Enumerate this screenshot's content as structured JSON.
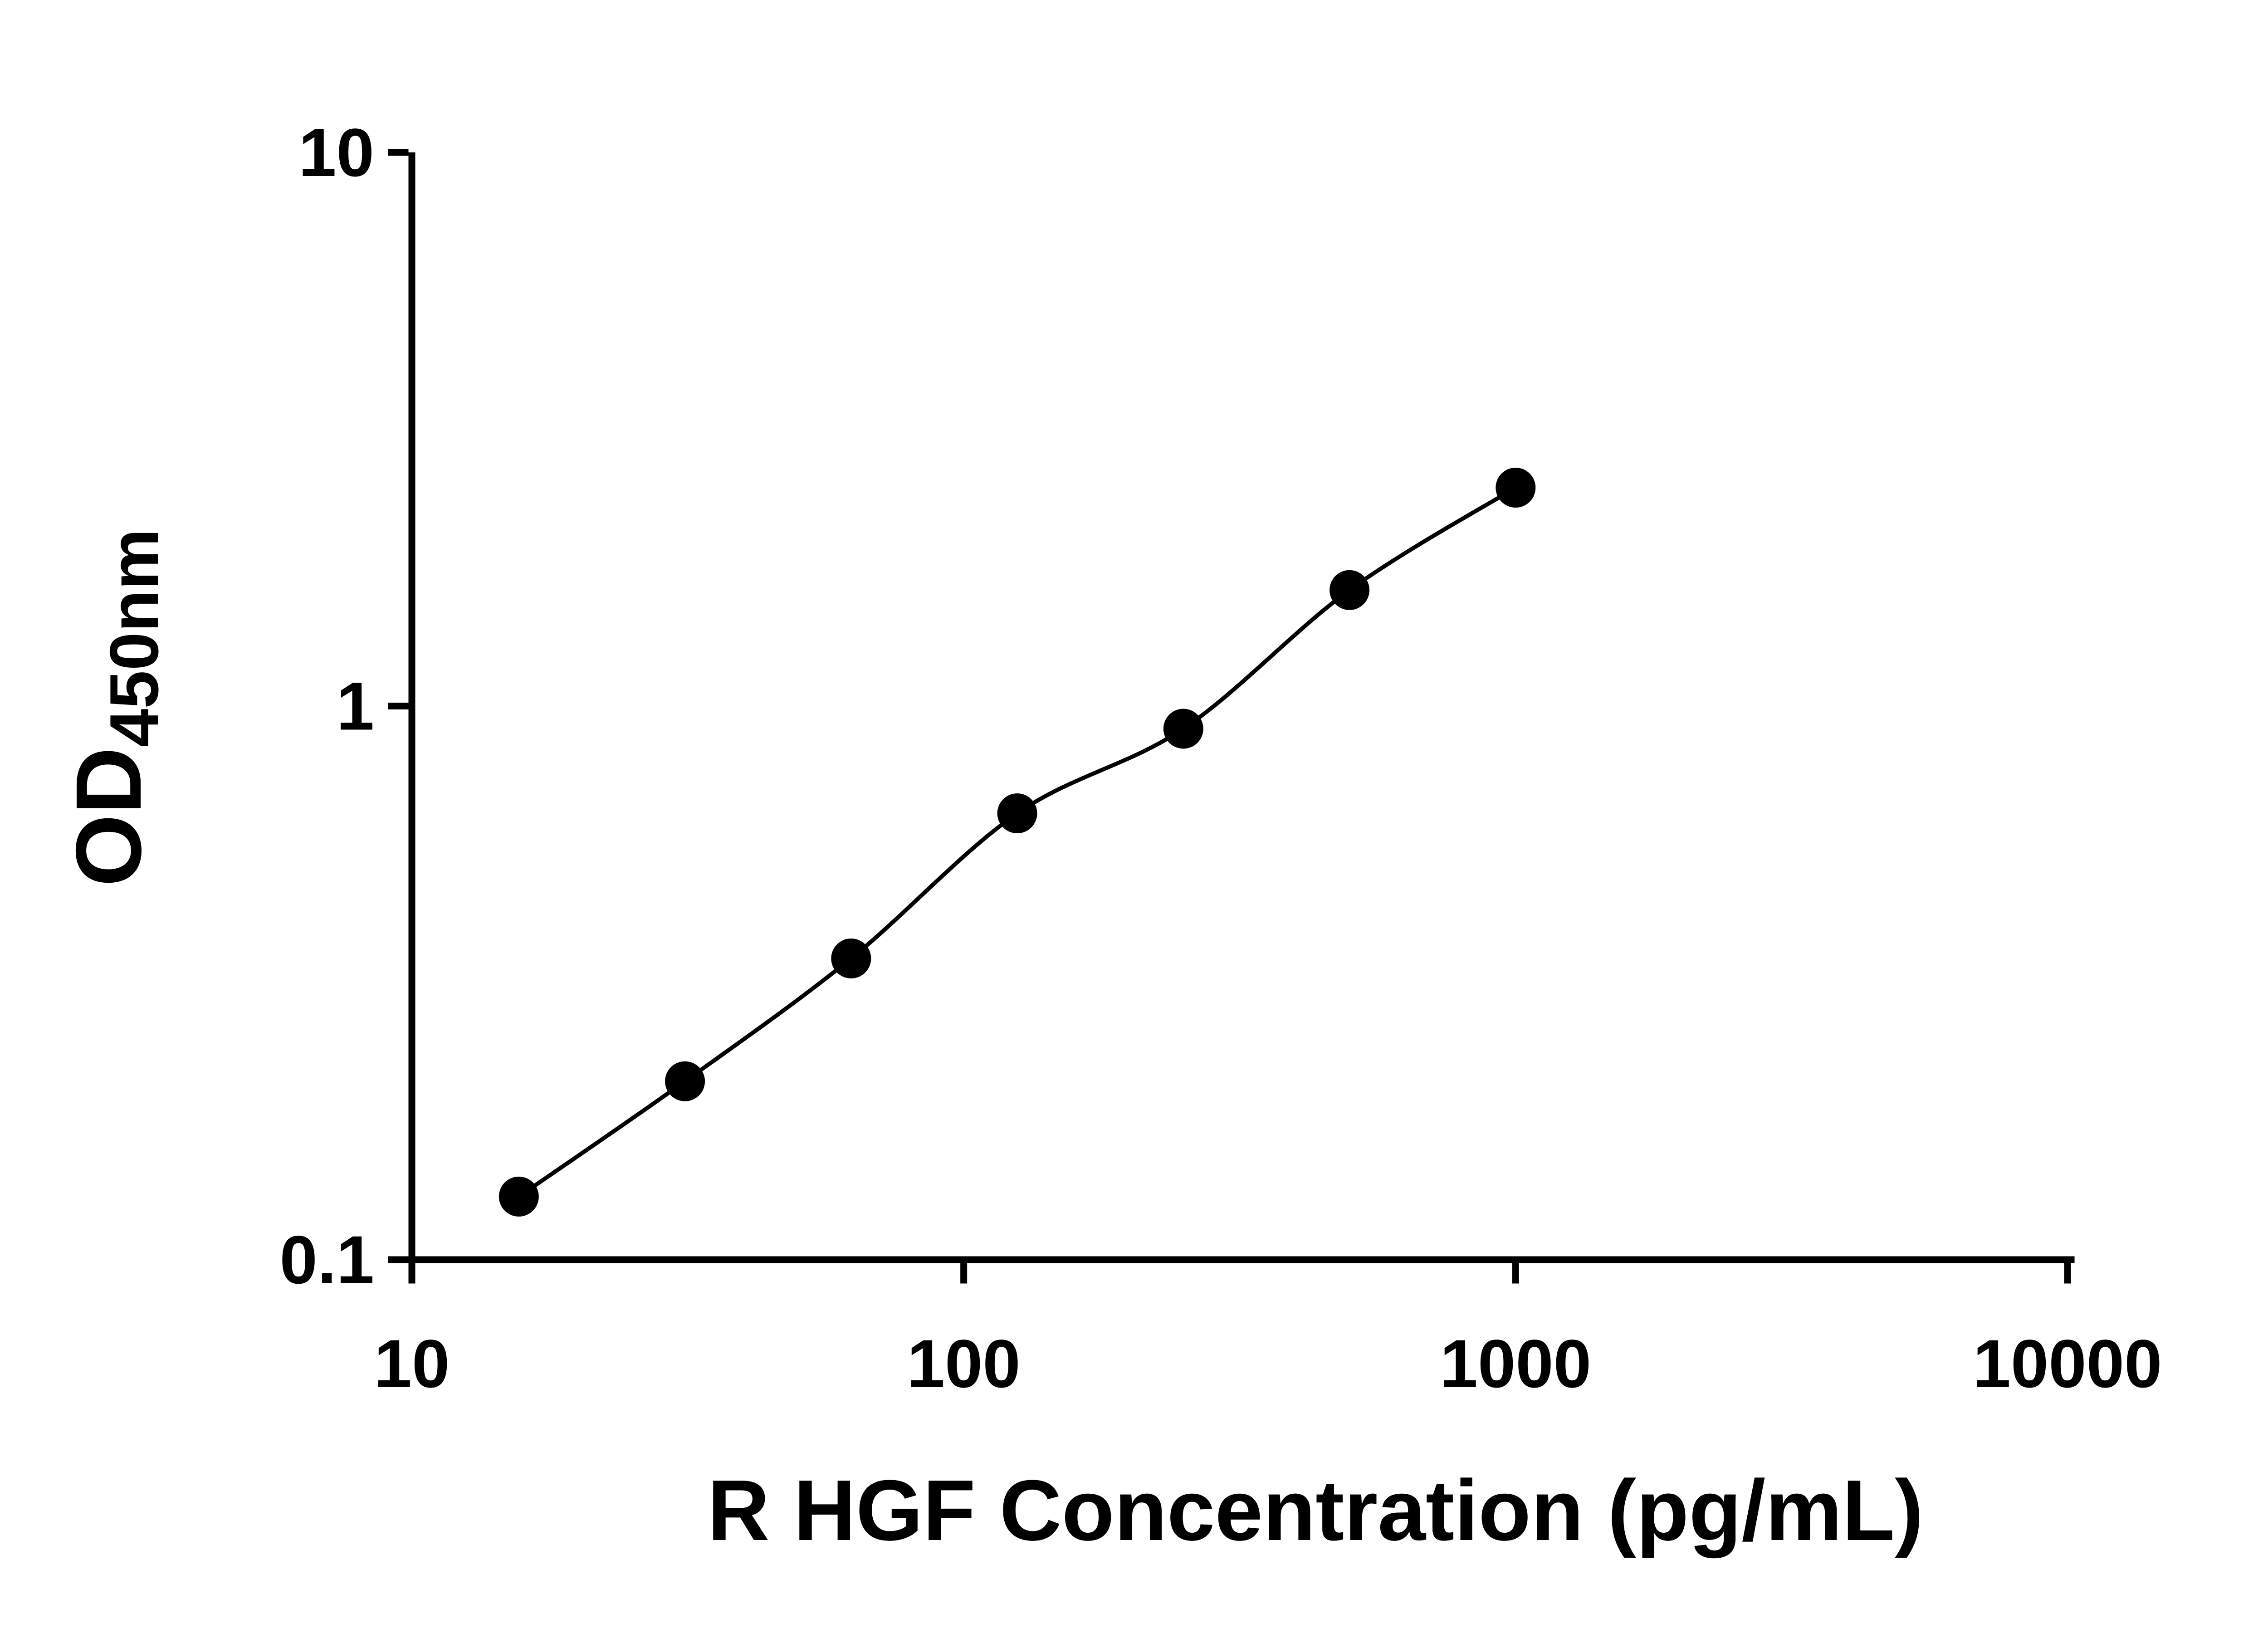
{
  "chart_data": {
    "type": "scatter",
    "x_scale": "log",
    "y_scale": "log",
    "x": [
      15.625,
      31.25,
      62.5,
      125,
      250,
      500,
      1000
    ],
    "y": [
      0.13,
      0.21,
      0.35,
      0.64,
      0.91,
      1.62,
      2.48
    ],
    "xlabel": "R HGF Concentration (pg/mL)",
    "ylabel_main": "OD",
    "ylabel_sub": "450nm",
    "xlim": [
      10,
      10000
    ],
    "ylim": [
      0.1,
      10
    ],
    "x_ticks": [
      {
        "value": 10,
        "label": "10"
      },
      {
        "value": 100,
        "label": "100"
      },
      {
        "value": 1000,
        "label": "1000"
      },
      {
        "value": 10000,
        "label": "10000"
      }
    ],
    "y_ticks": [
      {
        "value": 0.1,
        "label": "0.1"
      },
      {
        "value": 1,
        "label": "1"
      },
      {
        "value": 10,
        "label": "10"
      }
    ],
    "grid": false,
    "legend": false,
    "line_color": "#000000",
    "marker_color": "#000000",
    "axis_color": "#000000",
    "background": "#ffffff",
    "marker_shape": "circle",
    "curve_style": "smooth-fit-through-points"
  }
}
